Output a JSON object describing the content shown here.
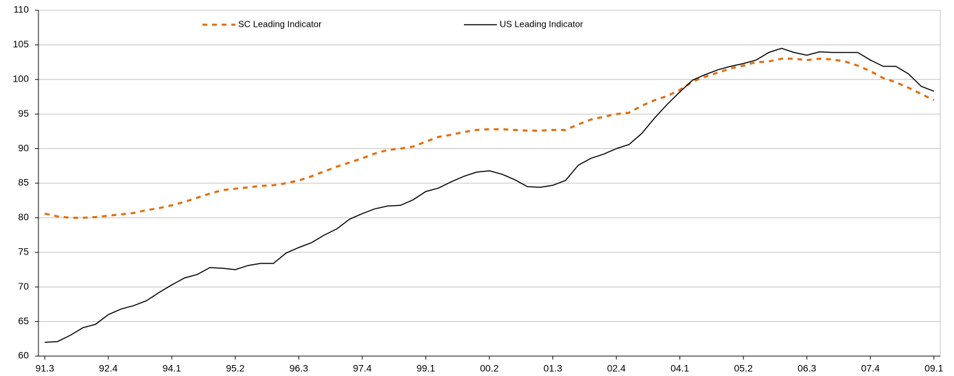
{
  "chart_data": {
    "type": "line",
    "categories": [
      "91.3",
      null,
      null,
      null,
      null,
      "92.4",
      null,
      null,
      null,
      null,
      "94.1",
      null,
      null,
      null,
      null,
      "95.2",
      null,
      null,
      null,
      null,
      "96.3",
      null,
      null,
      null,
      null,
      "97.4",
      null,
      null,
      null,
      null,
      "99.1",
      null,
      null,
      null,
      null,
      "00.2",
      null,
      null,
      null,
      null,
      "01.3",
      null,
      null,
      null,
      null,
      "02.4",
      null,
      null,
      null,
      null,
      "04.1",
      null,
      null,
      null,
      null,
      "05.2",
      null,
      null,
      null,
      null,
      "06.3",
      null,
      null,
      null,
      null,
      "07.4",
      null,
      null,
      null,
      null,
      "09.1"
    ],
    "series": [
      {
        "name": "SC Leading Indicator",
        "color": "#e46c0a",
        "line_style": "dashed",
        "values": [
          80.6,
          80.2,
          80.0,
          80.0,
          80.1,
          80.3,
          80.5,
          80.7,
          81.1,
          81.4,
          81.8,
          82.3,
          82.9,
          83.5,
          84.0,
          84.2,
          84.4,
          84.6,
          84.7,
          85.0,
          85.4,
          86.0,
          86.7,
          87.4,
          88.0,
          88.6,
          89.3,
          89.8,
          90.0,
          90.3,
          91.0,
          91.7,
          92.0,
          92.4,
          92.7,
          92.8,
          92.8,
          92.7,
          92.6,
          92.6,
          92.7,
          92.7,
          93.5,
          94.2,
          94.6,
          95.0,
          95.2,
          96.2,
          97.0,
          97.6,
          98.5,
          99.7,
          100.4,
          101.0,
          101.6,
          102.0,
          102.5,
          102.6,
          103.0,
          103.0,
          102.8,
          103.0,
          102.9,
          102.6,
          102.0,
          101.2,
          100.2,
          99.6,
          98.8,
          97.9,
          97.0
        ]
      },
      {
        "name": "US Leading Indicator",
        "color": "#000000",
        "line_style": "solid",
        "values": [
          62.0,
          62.1,
          63.0,
          64.1,
          64.6,
          66.0,
          66.8,
          67.3,
          68.0,
          69.2,
          70.3,
          71.3,
          71.8,
          72.8,
          72.7,
          72.5,
          73.1,
          73.4,
          73.4,
          74.9,
          75.7,
          76.4,
          77.5,
          78.4,
          79.8,
          80.6,
          81.3,
          81.7,
          81.8,
          82.6,
          83.8,
          84.3,
          85.2,
          86.0,
          86.6,
          86.8,
          86.3,
          85.5,
          84.5,
          84.4,
          84.7,
          85.4,
          87.6,
          88.6,
          89.2,
          90.0,
          90.6,
          92.2,
          94.4,
          96.4,
          98.2,
          99.9,
          100.7,
          101.4,
          101.9,
          102.3,
          102.8,
          103.9,
          104.5,
          103.9,
          103.5,
          104.0,
          103.9,
          103.9,
          103.9,
          102.8,
          101.9,
          101.9,
          100.8,
          99.0,
          98.3
        ]
      }
    ],
    "ylim": [
      60,
      110
    ],
    "yticks": [
      60,
      65,
      70,
      75,
      80,
      85,
      90,
      95,
      100,
      105,
      110
    ],
    "grid": true,
    "legend_position": "top"
  }
}
